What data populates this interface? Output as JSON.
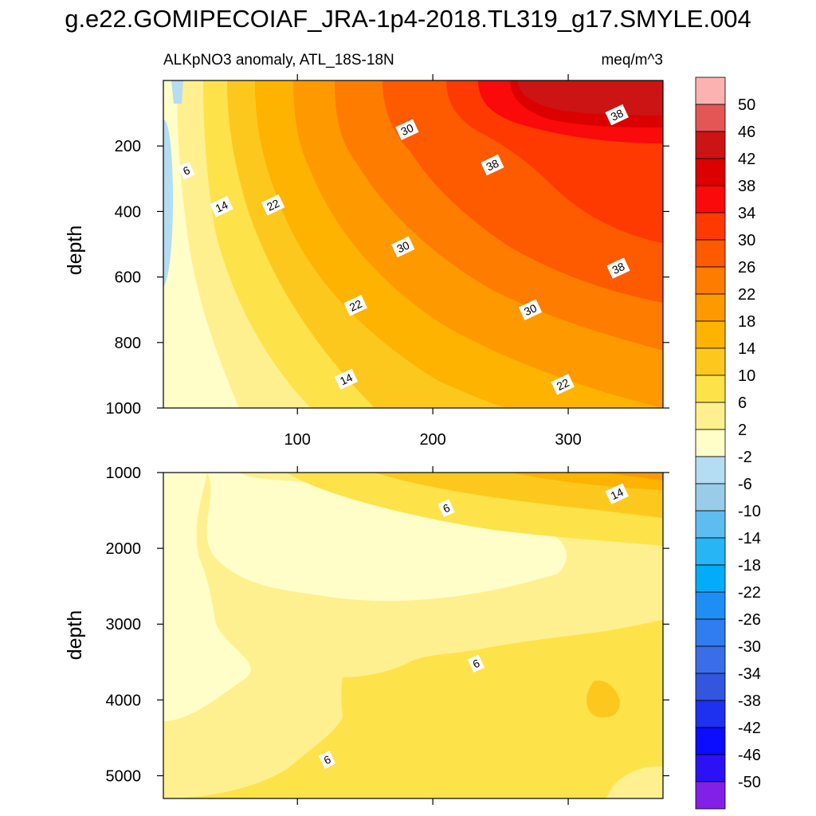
{
  "title": "g.e22.GOMIPECOIAF_JRA-1p4-2018.TL319_g17.SMYLE.004",
  "chart_data": {
    "type": "contour",
    "subtitle_left": "ALKpNO3 anomaly, ATL_18S-18N",
    "subtitle_right": "meq/m^3",
    "xlabel": "",
    "ylabel": "depth",
    "xlim": [
      1,
      370
    ],
    "x_ticks": [
      100,
      200,
      300
    ],
    "x_tick_labels": [
      "100",
      "200",
      "300"
    ],
    "panels": [
      {
        "name": "upper",
        "ylim": [
          1000,
          0
        ],
        "y_ticks": [
          200,
          400,
          600,
          800,
          1000
        ],
        "y_tick_labels": [
          "200",
          "400",
          "600",
          "800",
          "1000"
        ],
        "contour_labels": [
          {
            "text": "6",
            "x": 18,
            "y": 275
          },
          {
            "text": "14",
            "x": 44,
            "y": 385
          },
          {
            "text": "22",
            "x": 82,
            "y": 380
          },
          {
            "text": "30",
            "x": 181,
            "y": 150
          },
          {
            "text": "38",
            "x": 244,
            "y": 258
          },
          {
            "text": "38",
            "x": 336,
            "y": 105
          },
          {
            "text": "30",
            "x": 178,
            "y": 508
          },
          {
            "text": "38",
            "x": 337,
            "y": 573
          },
          {
            "text": "22",
            "x": 143,
            "y": 687
          },
          {
            "text": "30",
            "x": 272,
            "y": 700
          },
          {
            "text": "14",
            "x": 136,
            "y": 912
          },
          {
            "text": "22",
            "x": 296,
            "y": 928
          }
        ]
      },
      {
        "name": "lower",
        "ylim": [
          5300,
          1000
        ],
        "y_ticks": [
          1000,
          2000,
          3000,
          4000,
          5000
        ],
        "y_tick_labels": [
          "1000",
          "2000",
          "3000",
          "4000",
          "5000"
        ],
        "contour_labels": [
          {
            "text": "6",
            "x": 210,
            "y": 1470
          },
          {
            "text": "14",
            "x": 336,
            "y": 1280
          },
          {
            "text": "6",
            "x": 232,
            "y": 3520
          },
          {
            "text": "6",
            "x": 122,
            "y": 4790
          }
        ]
      }
    ],
    "colorbar": {
      "levels": [
        "50",
        "46",
        "42",
        "38",
        "34",
        "30",
        "26",
        "22",
        "18",
        "14",
        "10",
        "6",
        "2",
        "-2",
        "-6",
        "-10",
        "-14",
        "-18",
        "-22",
        "-26",
        "-30",
        "-34",
        "-38",
        "-42",
        "-46",
        "-50"
      ],
      "colors": [
        "#fdb2b2",
        "#e45656",
        "#cc1414",
        "#dc0000",
        "#fa0a0a",
        "#fe3a00",
        "#fe5a00",
        "#fe7c00",
        "#fe9a00",
        "#fdb300",
        "#fdc81e",
        "#fde24a",
        "#fef08e",
        "#fffdc8",
        "#b4dcf2",
        "#98cce9",
        "#5ebdf0",
        "#27b5f5",
        "#03acf8",
        "#1e8ef5",
        "#2f7df0",
        "#3a6ee8",
        "#3355e0",
        "#1e30f0",
        "#0c0cff",
        "#2d11f6",
        "#8220e8"
      ]
    }
  }
}
